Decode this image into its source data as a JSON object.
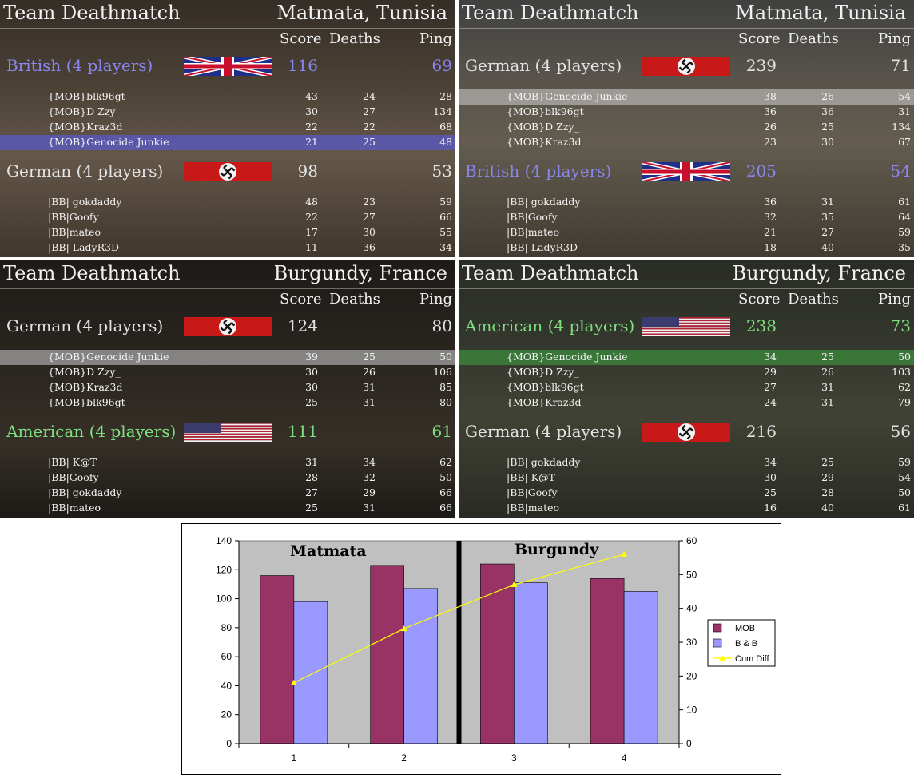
{
  "colors": {
    "british": "#8a86f0",
    "german": "#e2e2e2",
    "american": "#7ee07e",
    "mob": "#993366",
    "bb": "#9999ff",
    "cum": "#ffff00",
    "name_red": "#ff3030"
  },
  "panels": [
    {
      "title": "Team Deathmatch",
      "map": "Matmata, Tunisia",
      "headers": {
        "score": "Score",
        "deaths": "Deaths",
        "ping": "Ping"
      },
      "teams": [
        {
          "name": "British (4 players)",
          "flag": "uk-flag",
          "score": "116",
          "ping": "69",
          "color": "british",
          "players": [
            {
              "name": "{MOB}blk96gt",
              "score": "43",
              "deaths": "24",
              "ping": "28"
            },
            {
              "name": "{MOB}D Zzy_",
              "score": "30",
              "deaths": "27",
              "ping": "134"
            },
            {
              "name": "{MOB}Kraz3d",
              "score": "22",
              "deaths": "22",
              "ping": "68"
            },
            {
              "name": "{MOB}Genocide Junkie",
              "score": "21",
              "deaths": "25",
              "ping": "48",
              "hl": "blue"
            }
          ]
        },
        {
          "name": "German (4 players)",
          "flag": "swastika-flag",
          "score": "98",
          "ping": "53",
          "color": "german",
          "players": [
            {
              "name": "|BB| gokdaddy",
              "score": "48",
              "deaths": "23",
              "ping": "59"
            },
            {
              "name": "|BB|Goofy",
              "score": "22",
              "deaths": "27",
              "ping": "66"
            },
            {
              "name": "|BB|mateo",
              "score": "17",
              "deaths": "30",
              "ping": "55"
            },
            {
              "name": "|BB| LadyR3D",
              "score": "11",
              "deaths": "36",
              "ping": "34"
            }
          ]
        }
      ]
    },
    {
      "title": "Team Deathmatch",
      "map": "Matmata, Tunisia",
      "headers": {
        "score": "Score",
        "deaths": "Deaths",
        "ping": "Ping"
      },
      "teams": [
        {
          "name": "German (4 players)",
          "flag": "swastika-flag",
          "score": "239",
          "ping": "71",
          "color": "german",
          "players": [
            {
              "name": "{MOB}Genocide Junkie",
              "score": "38",
              "deaths": "26",
              "ping": "54",
              "hl": "gray"
            },
            {
              "name": "{MOB}blk96gt",
              "score": "36",
              "deaths": "36",
              "ping": "31"
            },
            {
              "name": "{MOB}D Zzy_",
              "score": "26",
              "deaths": "25",
              "ping": "134"
            },
            {
              "name": "{MOB}Kraz3d",
              "score": "23",
              "deaths": "30",
              "ping": "67"
            }
          ]
        },
        {
          "name": "British (4 players)",
          "flag": "uk-flag",
          "score": "205",
          "ping": "54",
          "color": "british",
          "players": [
            {
              "name": "|BB| gokdaddy",
              "score": "36",
              "deaths": "31",
              "ping": "61"
            },
            {
              "name": "|BB|Goofy",
              "score": "32",
              "deaths": "35",
              "ping": "64"
            },
            {
              "name": "|BB|mateo",
              "score": "21",
              "deaths": "27",
              "ping": "59"
            },
            {
              "name": "|BB| LadyR3D",
              "score": "18",
              "deaths": "40",
              "ping": "35"
            }
          ]
        }
      ]
    },
    {
      "title": "Team Deathmatch",
      "map": "Burgundy, France",
      "headers": {
        "score": "Score",
        "deaths": "Deaths",
        "ping": "Ping"
      },
      "teams": [
        {
          "name": "German (4 players)",
          "flag": "swastika-flag",
          "score": "124",
          "ping": "80",
          "color": "german",
          "players": [
            {
              "name": "{MOB}Genocide Junkie",
              "score": "39",
              "deaths": "25",
              "ping": "50",
              "hl": "gray"
            },
            {
              "name": "{MOB}D Zzy_",
              "score": "30",
              "deaths": "26",
              "ping": "106"
            },
            {
              "name": "{MOB}Kraz3d",
              "score": "30",
              "deaths": "31",
              "ping": "85"
            },
            {
              "name": "{MOB}blk96gt",
              "score": "25",
              "deaths": "31",
              "ping": "80"
            }
          ]
        },
        {
          "name": "American (4 players)",
          "flag": "us-flag",
          "score": "111",
          "ping": "61",
          "color": "american",
          "players": [
            {
              "name": "|BB| K@T",
              "score": "31",
              "deaths": "34",
              "ping": "62"
            },
            {
              "name": "|BB|Goofy",
              "score": "28",
              "deaths": "32",
              "ping": "50"
            },
            {
              "name": "|BB| gokdaddy",
              "score": "27",
              "deaths": "29",
              "ping": "66"
            },
            {
              "name": "|BB|mateo",
              "score": "25",
              "deaths": "31",
              "ping": "66"
            }
          ]
        }
      ]
    },
    {
      "title": "Team Deathmatch",
      "map": "Burgundy, France",
      "headers": {
        "score": "Score",
        "deaths": "Deaths",
        "ping": "Ping"
      },
      "teams": [
        {
          "name": "American (4 players)",
          "flag": "us-flag",
          "score": "238",
          "ping": "73",
          "color": "american",
          "players": [
            {
              "name": "{MOB}Genocide Junkie",
              "score": "34",
              "deaths": "25",
              "ping": "50",
              "hl": "green"
            },
            {
              "name": "{MOB}D Zzy_",
              "score": "29",
              "deaths": "26",
              "ping": "103"
            },
            {
              "name": "{MOB}blk96gt",
              "score": "27",
              "deaths": "31",
              "ping": "62"
            },
            {
              "name": "{MOB}Kraz3d",
              "score": "24",
              "deaths": "31",
              "ping": "79"
            }
          ]
        },
        {
          "name": "German (4 players)",
          "flag": "swastika-flag",
          "score": "216",
          "ping": "56",
          "color": "german",
          "players": [
            {
              "name": "|BB| gokdaddy",
              "score": "34",
              "deaths": "25",
              "ping": "59"
            },
            {
              "name": "|BB| K@T",
              "score": "30",
              "deaths": "29",
              "ping": "54"
            },
            {
              "name": "|BB|Goofy",
              "score": "25",
              "deaths": "28",
              "ping": "50"
            },
            {
              "name": "|BB|mateo",
              "score": "16",
              "deaths": "40",
              "ping": "61"
            }
          ]
        }
      ]
    }
  ],
  "chart_data": {
    "type": "bar",
    "categories": [
      "1",
      "2",
      "3",
      "4"
    ],
    "series": [
      {
        "name": "MOB",
        "values": [
          116,
          123,
          124,
          114
        ],
        "color": "#993366",
        "axis": "left"
      },
      {
        "name": "B & B",
        "values": [
          98,
          107,
          111,
          105
        ],
        "color": "#9999ff",
        "axis": "left"
      },
      {
        "name": "Cum Diff",
        "type": "line",
        "values": [
          18,
          34,
          47,
          56
        ],
        "color": "#ffff00",
        "axis": "right"
      }
    ],
    "ylim": [
      0,
      140
    ],
    "y2lim": [
      0,
      60
    ],
    "yticks": [
      "0",
      "20",
      "40",
      "60",
      "80",
      "100",
      "120",
      "140"
    ],
    "y2ticks": [
      "0",
      "10",
      "20",
      "30",
      "40",
      "50",
      "60"
    ],
    "annotations": [
      "Matmata",
      "Burgundy"
    ],
    "grid": false,
    "legend": "right"
  }
}
